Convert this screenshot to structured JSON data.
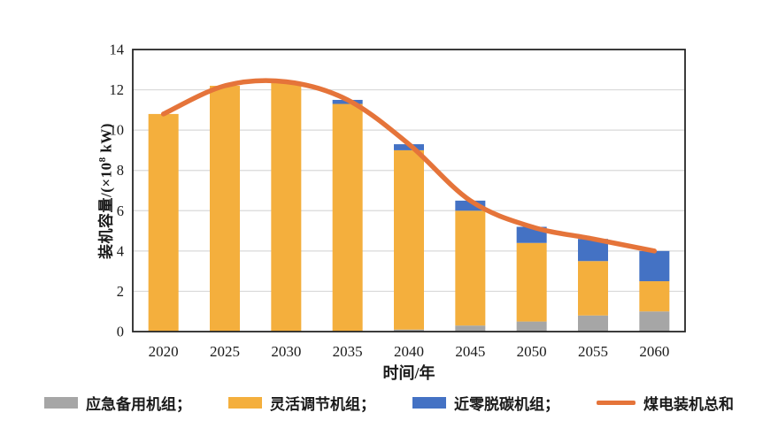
{
  "figure": {
    "background": "#ffffff"
  },
  "axes": {
    "y_title_prefix": "装机容量/(×10",
    "y_title_sup": "8",
    "y_title_suffix": " kW)",
    "x_title": "时间/年"
  },
  "colors": {
    "standby_gray": "#A6A6A6",
    "flexible_yellow": "#F4AF3D",
    "nearzero_blue": "#4472C4",
    "total_orange": "#E5743A",
    "gridline": "#D9D9D9",
    "axis_border": "#262626",
    "text": "#1a1a1a"
  },
  "legend": [
    {
      "label": "应急备用机组；",
      "swatch": "rect",
      "color": "#A6A6A6"
    },
    {
      "label": "灵活调节机组；",
      "swatch": "rect",
      "color": "#F4AF3D"
    },
    {
      "label": "近零脱碳机组；",
      "swatch": "rect",
      "color": "#4472C4"
    },
    {
      "label": "煤电装机总和",
      "swatch": "line",
      "color": "#E5743A"
    }
  ],
  "chart_data": {
    "type": "bar",
    "subtype": "stacked-bars-with-smoothed-line",
    "title": "",
    "xlabel": "时间/年",
    "ylabel": "装机容量/(×10⁸ kW)",
    "categories": [
      "2020",
      "2025",
      "2030",
      "2035",
      "2040",
      "2045",
      "2050",
      "2055",
      "2060"
    ],
    "series": [
      {
        "name": "应急备用机组",
        "type": "bar",
        "color": "#A6A6A6",
        "values": [
          0,
          0,
          0,
          0,
          0.1,
          0.3,
          0.5,
          0.8,
          1.0
        ]
      },
      {
        "name": "灵活调节机组",
        "type": "bar",
        "color": "#F4AF3D",
        "values": [
          10.8,
          12.2,
          12.4,
          11.3,
          8.9,
          5.7,
          3.9,
          2.7,
          1.5
        ]
      },
      {
        "name": "近零脱碳机组",
        "type": "bar",
        "color": "#4472C4",
        "values": [
          0,
          0,
          0,
          0.2,
          0.3,
          0.5,
          0.8,
          1.1,
          1.5
        ]
      },
      {
        "name": "煤电装机总和",
        "type": "line",
        "color": "#E5743A",
        "values": [
          10.8,
          12.2,
          12.4,
          11.5,
          9.3,
          6.5,
          5.2,
          4.6,
          4.0
        ]
      }
    ],
    "ylim": [
      0,
      14
    ],
    "yticks": [
      0,
      2,
      4,
      6,
      8,
      10,
      12,
      14
    ],
    "grid": true,
    "legend_position": "bottom"
  }
}
